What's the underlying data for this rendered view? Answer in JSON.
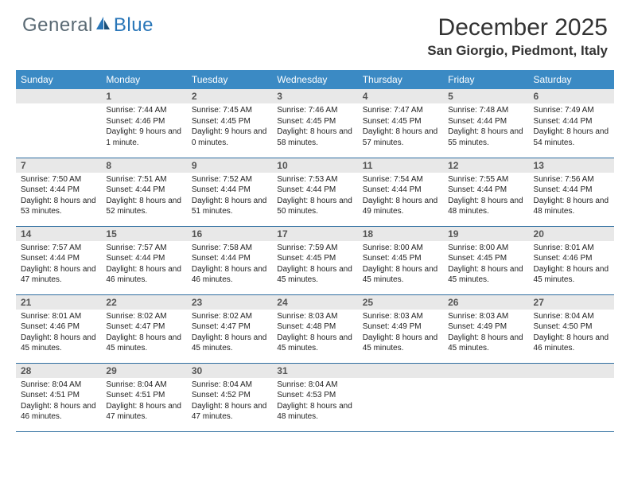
{
  "logo": {
    "general": "General",
    "blue": "Blue"
  },
  "title": "December 2025",
  "location": "San Giorgio, Piedmont, Italy",
  "colors": {
    "header_bg": "#3b8ac4",
    "header_text": "#ffffff",
    "daybar_bg": "#e8e8e8",
    "daybar_text": "#555555",
    "row_border": "#2f6ea0",
    "logo_gray": "#5a6a74",
    "logo_blue": "#2976b8"
  },
  "dow": [
    "Sunday",
    "Monday",
    "Tuesday",
    "Wednesday",
    "Thursday",
    "Friday",
    "Saturday"
  ],
  "weeks": [
    [
      null,
      {
        "n": "1",
        "sr": "7:44 AM",
        "ss": "4:46 PM",
        "dl": "9 hours and 1 minute."
      },
      {
        "n": "2",
        "sr": "7:45 AM",
        "ss": "4:45 PM",
        "dl": "9 hours and 0 minutes."
      },
      {
        "n": "3",
        "sr": "7:46 AM",
        "ss": "4:45 PM",
        "dl": "8 hours and 58 minutes."
      },
      {
        "n": "4",
        "sr": "7:47 AM",
        "ss": "4:45 PM",
        "dl": "8 hours and 57 minutes."
      },
      {
        "n": "5",
        "sr": "7:48 AM",
        "ss": "4:44 PM",
        "dl": "8 hours and 55 minutes."
      },
      {
        "n": "6",
        "sr": "7:49 AM",
        "ss": "4:44 PM",
        "dl": "8 hours and 54 minutes."
      }
    ],
    [
      {
        "n": "7",
        "sr": "7:50 AM",
        "ss": "4:44 PM",
        "dl": "8 hours and 53 minutes."
      },
      {
        "n": "8",
        "sr": "7:51 AM",
        "ss": "4:44 PM",
        "dl": "8 hours and 52 minutes."
      },
      {
        "n": "9",
        "sr": "7:52 AM",
        "ss": "4:44 PM",
        "dl": "8 hours and 51 minutes."
      },
      {
        "n": "10",
        "sr": "7:53 AM",
        "ss": "4:44 PM",
        "dl": "8 hours and 50 minutes."
      },
      {
        "n": "11",
        "sr": "7:54 AM",
        "ss": "4:44 PM",
        "dl": "8 hours and 49 minutes."
      },
      {
        "n": "12",
        "sr": "7:55 AM",
        "ss": "4:44 PM",
        "dl": "8 hours and 48 minutes."
      },
      {
        "n": "13",
        "sr": "7:56 AM",
        "ss": "4:44 PM",
        "dl": "8 hours and 48 minutes."
      }
    ],
    [
      {
        "n": "14",
        "sr": "7:57 AM",
        "ss": "4:44 PM",
        "dl": "8 hours and 47 minutes."
      },
      {
        "n": "15",
        "sr": "7:57 AM",
        "ss": "4:44 PM",
        "dl": "8 hours and 46 minutes."
      },
      {
        "n": "16",
        "sr": "7:58 AM",
        "ss": "4:44 PM",
        "dl": "8 hours and 46 minutes."
      },
      {
        "n": "17",
        "sr": "7:59 AM",
        "ss": "4:45 PM",
        "dl": "8 hours and 45 minutes."
      },
      {
        "n": "18",
        "sr": "8:00 AM",
        "ss": "4:45 PM",
        "dl": "8 hours and 45 minutes."
      },
      {
        "n": "19",
        "sr": "8:00 AM",
        "ss": "4:45 PM",
        "dl": "8 hours and 45 minutes."
      },
      {
        "n": "20",
        "sr": "8:01 AM",
        "ss": "4:46 PM",
        "dl": "8 hours and 45 minutes."
      }
    ],
    [
      {
        "n": "21",
        "sr": "8:01 AM",
        "ss": "4:46 PM",
        "dl": "8 hours and 45 minutes."
      },
      {
        "n": "22",
        "sr": "8:02 AM",
        "ss": "4:47 PM",
        "dl": "8 hours and 45 minutes."
      },
      {
        "n": "23",
        "sr": "8:02 AM",
        "ss": "4:47 PM",
        "dl": "8 hours and 45 minutes."
      },
      {
        "n": "24",
        "sr": "8:03 AM",
        "ss": "4:48 PM",
        "dl": "8 hours and 45 minutes."
      },
      {
        "n": "25",
        "sr": "8:03 AM",
        "ss": "4:49 PM",
        "dl": "8 hours and 45 minutes."
      },
      {
        "n": "26",
        "sr": "8:03 AM",
        "ss": "4:49 PM",
        "dl": "8 hours and 45 minutes."
      },
      {
        "n": "27",
        "sr": "8:04 AM",
        "ss": "4:50 PM",
        "dl": "8 hours and 46 minutes."
      }
    ],
    [
      {
        "n": "28",
        "sr": "8:04 AM",
        "ss": "4:51 PM",
        "dl": "8 hours and 46 minutes."
      },
      {
        "n": "29",
        "sr": "8:04 AM",
        "ss": "4:51 PM",
        "dl": "8 hours and 47 minutes."
      },
      {
        "n": "30",
        "sr": "8:04 AM",
        "ss": "4:52 PM",
        "dl": "8 hours and 47 minutes."
      },
      {
        "n": "31",
        "sr": "8:04 AM",
        "ss": "4:53 PM",
        "dl": "8 hours and 48 minutes."
      },
      null,
      null,
      null
    ]
  ],
  "labels": {
    "sunrise": "Sunrise:",
    "sunset": "Sunset:",
    "daylight": "Daylight:"
  }
}
